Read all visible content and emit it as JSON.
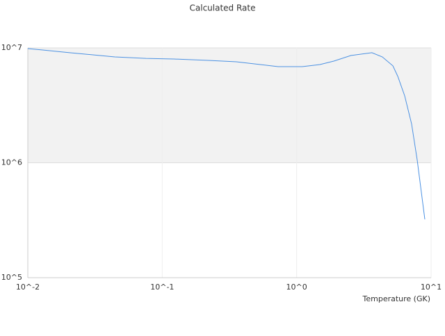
{
  "chart_data": {
    "type": "line",
    "title": "Calculated Rate",
    "x_label": "Temperature (GK)",
    "xscale": "log",
    "yscale": "log",
    "xlim": [
      0.01,
      10
    ],
    "ylim": [
      100000,
      10000000
    ],
    "xticks": [
      {
        "value": 0.01,
        "label": "10^-2"
      },
      {
        "value": 0.1,
        "label": "10^-1"
      },
      {
        "value": 1,
        "label": "10^0"
      },
      {
        "value": 10,
        "label": "10^1"
      }
    ],
    "yticks": [
      {
        "value": 100000,
        "label": "10^5"
      },
      {
        "value": 1000000,
        "label": "10^6"
      },
      {
        "value": 10000000,
        "label": "10^7"
      }
    ],
    "grid": true,
    "series": [
      {
        "color": "#4a90e2",
        "x": [
          0.01,
          0.0127,
          0.0204,
          0.0444,
          0.0757,
          0.122,
          0.221,
          0.356,
          0.728,
          1.1,
          1.49,
          1.89,
          2.54,
          3.63,
          4.34,
          5.2,
          5.65,
          6.36,
          7.16,
          7.88,
          8.98
        ],
        "values": [
          9860000,
          9600000,
          9080000,
          8340000,
          8110000,
          8000000,
          7780000,
          7570000,
          6870000,
          6870000,
          7160000,
          7680000,
          8590000,
          9080000,
          8340000,
          6970000,
          5650000,
          3830000,
          2190000,
          1060000,
          322000
        ]
      }
    ]
  }
}
